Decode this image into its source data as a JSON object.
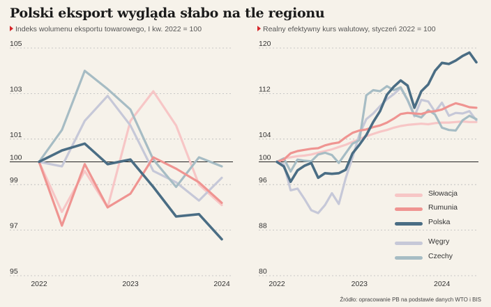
{
  "title": "Polski eksport wygląda słabo na tle regionu",
  "source": "Źródło: opracowanie PB na podstawie danych WTO i BIS",
  "colors": {
    "slowacja": "#f7c6c6",
    "rumunia": "#ef9491",
    "polska": "#4a6d84",
    "wegry": "#c6c8d8",
    "czechy": "#a6bcc4",
    "baseline": "#222222",
    "grid": "#b9b9b9",
    "marker": "#d6272b"
  },
  "legend": [
    {
      "name": "Słowacja",
      "color_key": "slowacja"
    },
    {
      "name": "Rumunia",
      "color_key": "rumunia"
    },
    {
      "name": "Polska",
      "color_key": "polska"
    },
    {
      "name": "Węgry",
      "color_key": "wegry"
    },
    {
      "name": "Czechy",
      "color_key": "czechy"
    }
  ],
  "chart_data": [
    {
      "type": "line",
      "title": "Indeks wolumenu eksportu towarowego, I kw. 2022 = 100",
      "x_ticks": [
        "2022",
        "2023",
        "2024"
      ],
      "x_tick_positions": [
        0,
        4,
        8
      ],
      "y_ticks": [
        95,
        97,
        99,
        100,
        101,
        103,
        105
      ],
      "ylim": [
        95,
        105
      ],
      "xlim": [
        0,
        8
      ],
      "baseline": 100,
      "grid": "horizontal dashed",
      "series": [
        {
          "name": "Słowacja",
          "color_key": "slowacja",
          "x": [
            0,
            1,
            2,
            3,
            4,
            5,
            6,
            7,
            8
          ],
          "values": [
            100,
            97.8,
            99.6,
            98.0,
            101.8,
            103.1,
            101.6,
            99.0,
            98.1
          ]
        },
        {
          "name": "Rumunia",
          "color_key": "rumunia",
          "x": [
            0,
            1,
            2,
            3,
            4,
            5,
            6,
            7,
            8
          ],
          "values": [
            100,
            97.2,
            99.9,
            98.0,
            98.6,
            100.2,
            99.7,
            99.1,
            98.2
          ]
        },
        {
          "name": "Polska",
          "color_key": "polska",
          "x": [
            0,
            1,
            2,
            3,
            4,
            5,
            6,
            7,
            8
          ],
          "values": [
            100,
            100.5,
            100.8,
            99.9,
            100.1,
            98.9,
            97.6,
            97.7,
            96.6
          ]
        },
        {
          "name": "Węgry",
          "color_key": "wegry",
          "x": [
            0,
            1,
            2,
            3,
            4,
            5,
            6,
            7,
            8
          ],
          "values": [
            100,
            99.8,
            101.8,
            102.9,
            101.6,
            99.6,
            99.1,
            98.3,
            99.3
          ]
        },
        {
          "name": "Czechy",
          "color_key": "czechy",
          "x": [
            0,
            1,
            2,
            3,
            4,
            5,
            6,
            7,
            8
          ],
          "values": [
            100,
            101.4,
            104.0,
            103.2,
            102.3,
            100.1,
            98.9,
            100.2,
            99.8
          ]
        }
      ]
    },
    {
      "type": "line",
      "title": "Realny efektywny kurs walutowy, styczeń 2022 = 100",
      "x_ticks": [
        "2022",
        "2023",
        "2024"
      ],
      "x_tick_positions": [
        0,
        12,
        24
      ],
      "y_ticks": [
        80,
        88,
        96,
        100,
        104,
        112,
        120
      ],
      "ylim": [
        80,
        120
      ],
      "xlim": [
        0,
        29
      ],
      "baseline": 100,
      "grid": "horizontal dashed",
      "series": [
        {
          "name": "Słowacja",
          "color_key": "slowacja",
          "x": [
            0,
            1,
            2,
            3,
            4,
            5,
            6,
            7,
            8,
            9,
            10,
            11,
            12,
            13,
            14,
            15,
            16,
            17,
            18,
            19,
            20,
            21,
            22,
            23,
            24,
            25,
            26,
            27,
            28,
            29
          ],
          "values": [
            100,
            100.6,
            100.8,
            101.0,
            101.1,
            101.3,
            101.6,
            101.9,
            102.2,
            102.6,
            103.0,
            103.5,
            104.0,
            104.5,
            104.9,
            105.3,
            105.6,
            106.0,
            106.3,
            106.5,
            106.6,
            106.7,
            106.6,
            106.8,
            106.9,
            106.9,
            107.0,
            107.1,
            107.0,
            107.0
          ]
        },
        {
          "name": "Rumunia",
          "color_key": "rumunia",
          "x": [
            0,
            1,
            2,
            3,
            4,
            5,
            6,
            7,
            8,
            9,
            10,
            11,
            12,
            13,
            14,
            15,
            16,
            17,
            18,
            19,
            20,
            21,
            22,
            23,
            24,
            25,
            26,
            27,
            28,
            29
          ],
          "values": [
            100,
            100.4,
            101.5,
            101.9,
            102.1,
            102.3,
            102.4,
            102.9,
            103.2,
            103.4,
            104.3,
            105.1,
            105.5,
            105.7,
            106.1,
            106.4,
            106.9,
            107.6,
            108.4,
            108.6,
            108.5,
            108.4,
            108.8,
            108.9,
            109.2,
            109.8,
            110.3,
            110.0,
            109.6,
            109.5
          ]
        },
        {
          "name": "Polska",
          "color_key": "polska",
          "x": [
            0,
            1,
            2,
            3,
            4,
            5,
            6,
            7,
            8,
            9,
            10,
            11,
            12,
            13,
            14,
            15,
            16,
            17,
            18,
            19,
            20,
            21,
            22,
            23,
            24,
            25,
            26,
            27,
            28,
            29
          ],
          "values": [
            100,
            99.2,
            96.5,
            98.5,
            99.3,
            99.8,
            97.2,
            98.0,
            97.9,
            98.0,
            98.6,
            101.5,
            103.0,
            104.7,
            107.0,
            108.9,
            111.8,
            113.2,
            114.3,
            113.4,
            109.5,
            112.4,
            113.6,
            116.0,
            117.4,
            117.2,
            117.8,
            118.6,
            119.2,
            117.5
          ]
        },
        {
          "name": "Węgry",
          "color_key": "wegry",
          "x": [
            0,
            1,
            2,
            3,
            4,
            5,
            6,
            7,
            8,
            9,
            10,
            11,
            12,
            13,
            14,
            15,
            16,
            17,
            18,
            19,
            20,
            21,
            22,
            23,
            24,
            25,
            26,
            27,
            28,
            29
          ],
          "values": [
            100,
            99.6,
            95.0,
            95.3,
            93.5,
            91.5,
            91.0,
            92.4,
            94.5,
            92.6,
            97.1,
            100.8,
            104.8,
            107.5,
            108.5,
            109.8,
            111.0,
            111.9,
            113.0,
            110.8,
            108.0,
            110.9,
            110.6,
            108.8,
            110.4,
            108.1,
            108.6,
            108.5,
            108.9,
            107.3
          ]
        },
        {
          "name": "Czechy",
          "color_key": "czechy",
          "x": [
            0,
            1,
            2,
            3,
            4,
            5,
            6,
            7,
            8,
            9,
            10,
            11,
            12,
            13,
            14,
            15,
            16,
            17,
            18,
            19,
            20,
            21,
            22,
            23,
            24,
            25,
            26,
            27,
            28,
            29
          ],
          "values": [
            100,
            100.6,
            98.3,
            100.4,
            100.2,
            100.1,
            101.3,
            101.6,
            101.2,
            99.8,
            101.5,
            103.2,
            103.8,
            111.7,
            112.6,
            112.4,
            113.3,
            112.6,
            113.1,
            110.9,
            108.2,
            107.8,
            109.1,
            108.3,
            106.0,
            105.6,
            105.5,
            107.3,
            108.1,
            107.5
          ]
        }
      ]
    }
  ]
}
